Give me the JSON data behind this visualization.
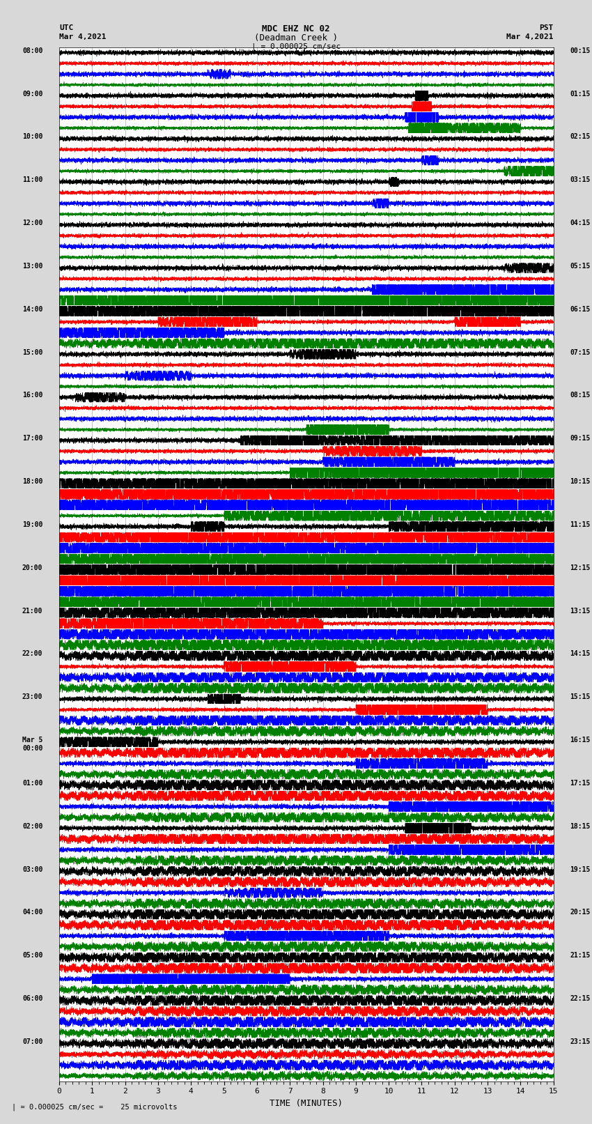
{
  "title_line1": "MDC EHZ NC 02",
  "title_line2": "(Deadman Creek )",
  "title_line3": "| = 0.000025 cm/sec",
  "label_utc": "UTC",
  "label_date_left": "Mar 4,2021",
  "label_pst": "PST",
  "label_date_right": "Mar 4,2021",
  "xlabel": "TIME (MINUTES)",
  "scale_text": "| = 0.000025 cm/sec =    25 microvolts",
  "xlim": [
    0,
    15
  ],
  "xticks": [
    0,
    1,
    2,
    3,
    4,
    5,
    6,
    7,
    8,
    9,
    10,
    11,
    12,
    13,
    14,
    15
  ],
  "colors_cycle": [
    "black",
    "red",
    "blue",
    "green"
  ],
  "background_color": "#d8d8d8",
  "plot_bg": "white",
  "fig_width": 8.5,
  "fig_height": 16.13,
  "dpi": 100,
  "left_labels": [
    [
      "08:00",
      0
    ],
    [
      "09:00",
      4
    ],
    [
      "10:00",
      8
    ],
    [
      "11:00",
      12
    ],
    [
      "12:00",
      16
    ],
    [
      "13:00",
      20
    ],
    [
      "14:00",
      24
    ],
    [
      "15:00",
      28
    ],
    [
      "16:00",
      32
    ],
    [
      "17:00",
      36
    ],
    [
      "18:00",
      40
    ],
    [
      "19:00",
      44
    ],
    [
      "20:00",
      48
    ],
    [
      "21:00",
      52
    ],
    [
      "22:00",
      56
    ],
    [
      "23:00",
      60
    ],
    [
      "Mar 5\n00:00",
      64
    ],
    [
      "01:00",
      68
    ],
    [
      "02:00",
      72
    ],
    [
      "03:00",
      76
    ],
    [
      "04:00",
      80
    ],
    [
      "05:00",
      84
    ],
    [
      "06:00",
      88
    ],
    [
      "07:00",
      92
    ]
  ],
  "right_labels": [
    [
      "00:15",
      0
    ],
    [
      "01:15",
      4
    ],
    [
      "02:15",
      8
    ],
    [
      "03:15",
      12
    ],
    [
      "04:15",
      16
    ],
    [
      "05:15",
      20
    ],
    [
      "06:15",
      24
    ],
    [
      "07:15",
      28
    ],
    [
      "08:15",
      32
    ],
    [
      "09:15",
      36
    ],
    [
      "10:15",
      40
    ],
    [
      "11:15",
      44
    ],
    [
      "12:15",
      48
    ],
    [
      "13:15",
      52
    ],
    [
      "14:15",
      56
    ],
    [
      "15:15",
      60
    ],
    [
      "16:15",
      64
    ],
    [
      "17:15",
      68
    ],
    [
      "18:15",
      72
    ],
    [
      "19:15",
      76
    ],
    [
      "20:15",
      80
    ],
    [
      "21:15",
      84
    ],
    [
      "22:15",
      88
    ],
    [
      "23:15",
      92
    ]
  ]
}
